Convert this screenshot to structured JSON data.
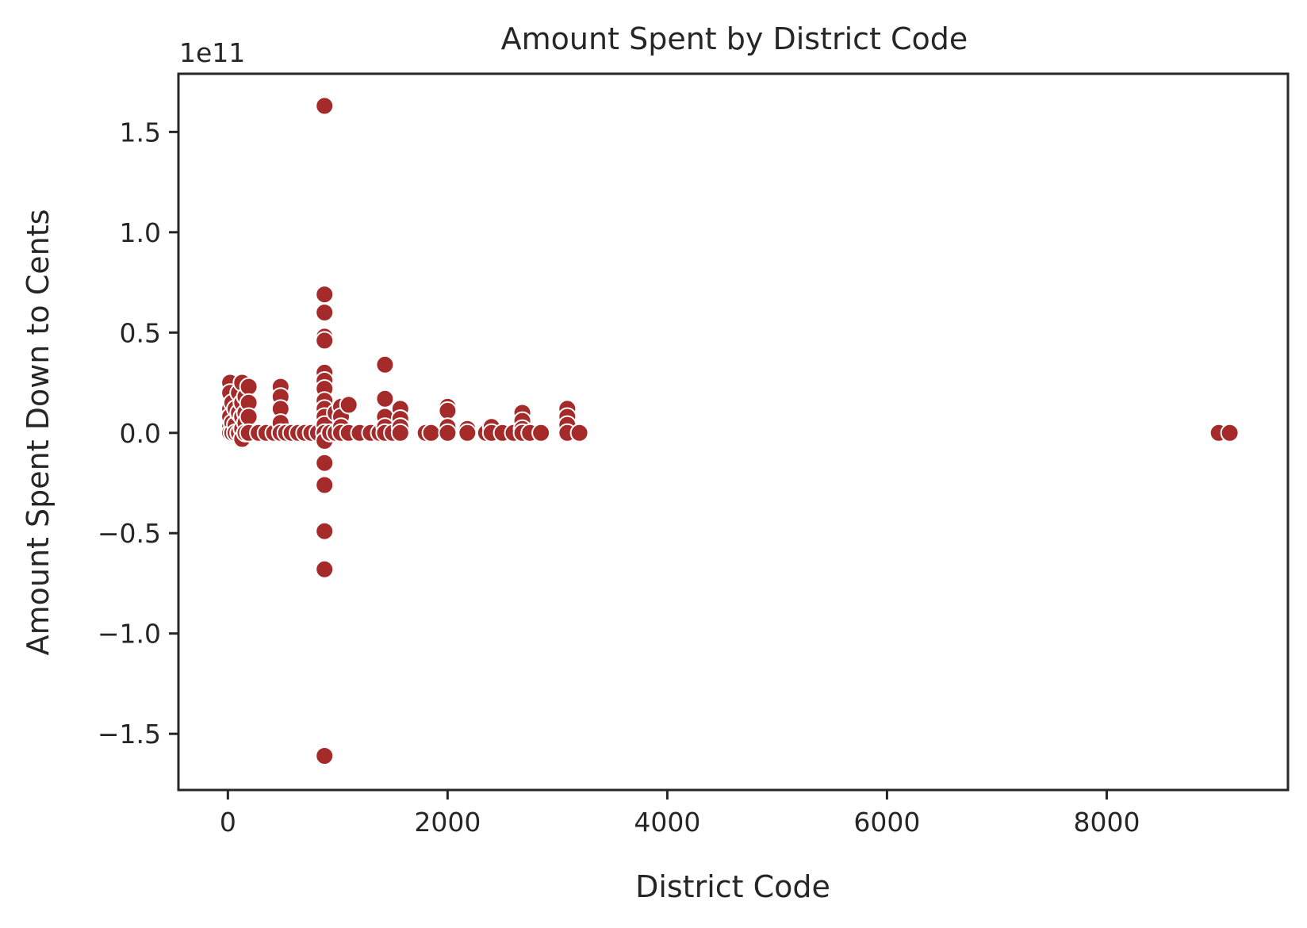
{
  "chart_data": {
    "type": "scatter",
    "title": "Amount Spent by District Code",
    "xlabel": "District Code",
    "ylabel": "Amount Spent Down to Cents",
    "y_offset_text": "1e11",
    "xlim": [
      -450,
      9650
    ],
    "ylim": [
      -178000000000.0,
      179000000000.0
    ],
    "xticks": [
      0,
      2000,
      4000,
      6000,
      8000
    ],
    "xtick_labels": [
      "0",
      "2000",
      "4000",
      "6000",
      "8000"
    ],
    "yticks": [
      -150000000000.0,
      -100000000000.0,
      -50000000000.0,
      0,
      50000000000.0,
      100000000000.0,
      150000000000.0
    ],
    "ytick_labels": [
      "−1.5",
      "−1.0",
      "−0.5",
      "0.0",
      "0.5",
      "1.0",
      "1.5"
    ],
    "grid": false,
    "legend": "none",
    "colors": {
      "marker": "#a52a2a",
      "marker_edge": "#ffffff",
      "axes": "#262626"
    },
    "points": [
      {
        "x": 20,
        "y": 25000000000.0
      },
      {
        "x": 20,
        "y": 20000000000.0
      },
      {
        "x": 20,
        "y": 12000000000.0
      },
      {
        "x": 20,
        "y": 8000000000.0
      },
      {
        "x": 20,
        "y": 3000000000.0
      },
      {
        "x": 20,
        "y": 0
      },
      {
        "x": 40,
        "y": 15000000000.0
      },
      {
        "x": 40,
        "y": 5000000000.0
      },
      {
        "x": 40,
        "y": 0
      },
      {
        "x": 70,
        "y": 12000000000.0
      },
      {
        "x": 70,
        "y": 4000000000.0
      },
      {
        "x": 70,
        "y": 0
      },
      {
        "x": 100,
        "y": 20000000000.0
      },
      {
        "x": 100,
        "y": 10000000000.0
      },
      {
        "x": 100,
        "y": 0
      },
      {
        "x": 130,
        "y": 25000000000.0
      },
      {
        "x": 130,
        "y": 15000000000.0
      },
      {
        "x": 130,
        "y": 8000000000.0
      },
      {
        "x": 130,
        "y": 2000000000.0
      },
      {
        "x": 130,
        "y": -3000000000.0
      },
      {
        "x": 160,
        "y": 18000000000.0
      },
      {
        "x": 160,
        "y": 10000000000.0
      },
      {
        "x": 160,
        "y": 5000000000.0
      },
      {
        "x": 160,
        "y": 0
      },
      {
        "x": 190,
        "y": 23000000000.0
      },
      {
        "x": 190,
        "y": 15000000000.0
      },
      {
        "x": 190,
        "y": 8000000000.0
      },
      {
        "x": 190,
        "y": 0
      },
      {
        "x": 280,
        "y": 0
      },
      {
        "x": 350,
        "y": 0
      },
      {
        "x": 420,
        "y": 0
      },
      {
        "x": 480,
        "y": 23000000000.0
      },
      {
        "x": 480,
        "y": 18000000000.0
      },
      {
        "x": 480,
        "y": 12000000000.0
      },
      {
        "x": 480,
        "y": 5000000000.0
      },
      {
        "x": 480,
        "y": 0
      },
      {
        "x": 530,
        "y": 0
      },
      {
        "x": 580,
        "y": 0
      },
      {
        "x": 640,
        "y": 0
      },
      {
        "x": 700,
        "y": 0
      },
      {
        "x": 760,
        "y": 0
      },
      {
        "x": 820,
        "y": 0
      },
      {
        "x": 880,
        "y": 163000000000.0
      },
      {
        "x": 880,
        "y": 69000000000.0
      },
      {
        "x": 880,
        "y": 60000000000.0
      },
      {
        "x": 880,
        "y": 48000000000.0
      },
      {
        "x": 880,
        "y": 46000000000.0
      },
      {
        "x": 880,
        "y": 30000000000.0
      },
      {
        "x": 880,
        "y": 26000000000.0
      },
      {
        "x": 880,
        "y": 22000000000.0
      },
      {
        "x": 880,
        "y": 16000000000.0
      },
      {
        "x": 880,
        "y": 12000000000.0
      },
      {
        "x": 880,
        "y": 8000000000.0
      },
      {
        "x": 880,
        "y": 4000000000.0
      },
      {
        "x": 880,
        "y": 0
      },
      {
        "x": 880,
        "y": -4000000000.0
      },
      {
        "x": 880,
        "y": -15000000000.0
      },
      {
        "x": 880,
        "y": -26000000000.0
      },
      {
        "x": 880,
        "y": -49000000000.0
      },
      {
        "x": 880,
        "y": -68000000000.0
      },
      {
        "x": 880,
        "y": -161000000000.0
      },
      {
        "x": 930,
        "y": 0
      },
      {
        "x": 980,
        "y": 10000000000.0
      },
      {
        "x": 980,
        "y": 0
      },
      {
        "x": 1030,
        "y": 13000000000.0
      },
      {
        "x": 1030,
        "y": 8000000000.0
      },
      {
        "x": 1030,
        "y": 3000000000.0
      },
      {
        "x": 1030,
        "y": 0
      },
      {
        "x": 1100,
        "y": 14000000000.0
      },
      {
        "x": 1100,
        "y": 0
      },
      {
        "x": 1200,
        "y": 0
      },
      {
        "x": 1300,
        "y": 0
      },
      {
        "x": 1380,
        "y": 0
      },
      {
        "x": 1430,
        "y": 34000000000.0
      },
      {
        "x": 1430,
        "y": 17000000000.0
      },
      {
        "x": 1430,
        "y": 8000000000.0
      },
      {
        "x": 1430,
        "y": 3000000000.0
      },
      {
        "x": 1430,
        "y": 0
      },
      {
        "x": 1500,
        "y": 0
      },
      {
        "x": 1570,
        "y": 12000000000.0
      },
      {
        "x": 1570,
        "y": 7000000000.0
      },
      {
        "x": 1570,
        "y": 3000000000.0
      },
      {
        "x": 1570,
        "y": 0
      },
      {
        "x": 1800,
        "y": 0
      },
      {
        "x": 1850,
        "y": 0
      },
      {
        "x": 2000,
        "y": 13000000000.0
      },
      {
        "x": 2000,
        "y": 11000000000.0
      },
      {
        "x": 2000,
        "y": 3000000000.0
      },
      {
        "x": 2000,
        "y": 0
      },
      {
        "x": 2180,
        "y": 2000000000.0
      },
      {
        "x": 2180,
        "y": 0
      },
      {
        "x": 2350,
        "y": 0
      },
      {
        "x": 2400,
        "y": 3000000000.0
      },
      {
        "x": 2400,
        "y": 0
      },
      {
        "x": 2500,
        "y": 0
      },
      {
        "x": 2600,
        "y": 0
      },
      {
        "x": 2680,
        "y": 10000000000.0
      },
      {
        "x": 2680,
        "y": 6000000000.0
      },
      {
        "x": 2680,
        "y": 2000000000.0
      },
      {
        "x": 2680,
        "y": 0
      },
      {
        "x": 2750,
        "y": 0
      },
      {
        "x": 2850,
        "y": 0
      },
      {
        "x": 3090,
        "y": 12000000000.0
      },
      {
        "x": 3090,
        "y": 8000000000.0
      },
      {
        "x": 3090,
        "y": 4000000000.0
      },
      {
        "x": 3090,
        "y": 0
      },
      {
        "x": 3200,
        "y": 0
      },
      {
        "x": 9020,
        "y": 0
      },
      {
        "x": 9120,
        "y": 0
      }
    ]
  }
}
